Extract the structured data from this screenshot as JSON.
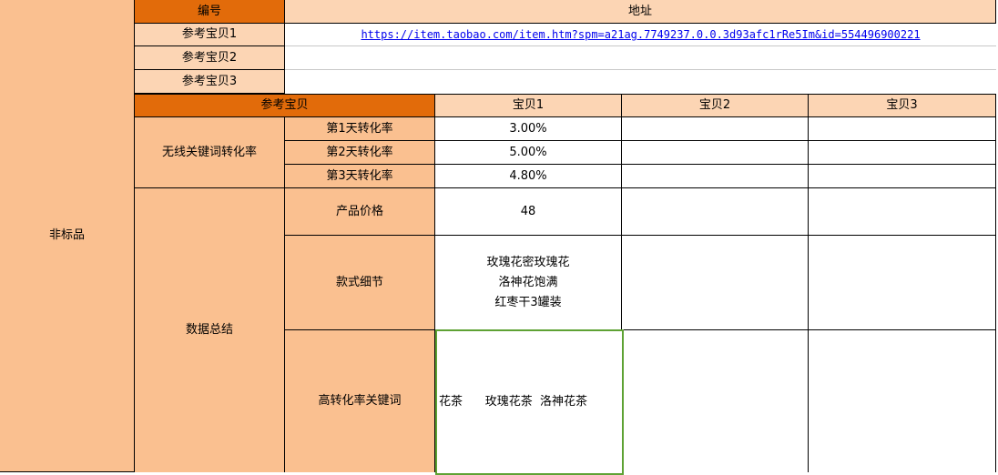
{
  "sheet": {
    "category": "非标品",
    "top_header": {
      "id": "编号",
      "address": "地址"
    },
    "references": [
      {
        "label": "参考宝贝1",
        "url": "https://item.taobao.com/item.htm?spm=a21ag.7749237.0.0.3d93afc1rRe5Im&id=554496900221"
      },
      {
        "label": "参考宝贝2",
        "url": ""
      },
      {
        "label": "参考宝贝3",
        "url": ""
      }
    ],
    "compare_header": {
      "ref": "参考宝贝",
      "items": [
        "宝贝1",
        "宝贝2",
        "宝贝3"
      ]
    },
    "conversion": {
      "group": "无线关键词转化率",
      "rows": [
        {
          "label": "第1天转化率",
          "values": [
            "3.00%",
            "",
            ""
          ]
        },
        {
          "label": "第2天转化率",
          "values": [
            "5.00%",
            "",
            ""
          ]
        },
        {
          "label": "第3天转化率",
          "values": [
            "4.80%",
            "",
            ""
          ]
        }
      ]
    },
    "summary": {
      "group": "数据总结",
      "price": {
        "label": "产品价格",
        "values": [
          "48",
          "",
          ""
        ]
      },
      "style": {
        "label": "款式细节",
        "lines": [
          "玫瑰花密玫瑰花",
          "洛神花饱满",
          "红枣干3罐装"
        ]
      },
      "keywords": {
        "label": "高转化率关键词",
        "value": "花茶      玫瑰花茶  洛神花茶"
      }
    },
    "colors": {
      "header_orange": "#e26b0a",
      "light": "#fcd5b4",
      "medium": "#fac090",
      "selection": "#5ea234"
    }
  }
}
